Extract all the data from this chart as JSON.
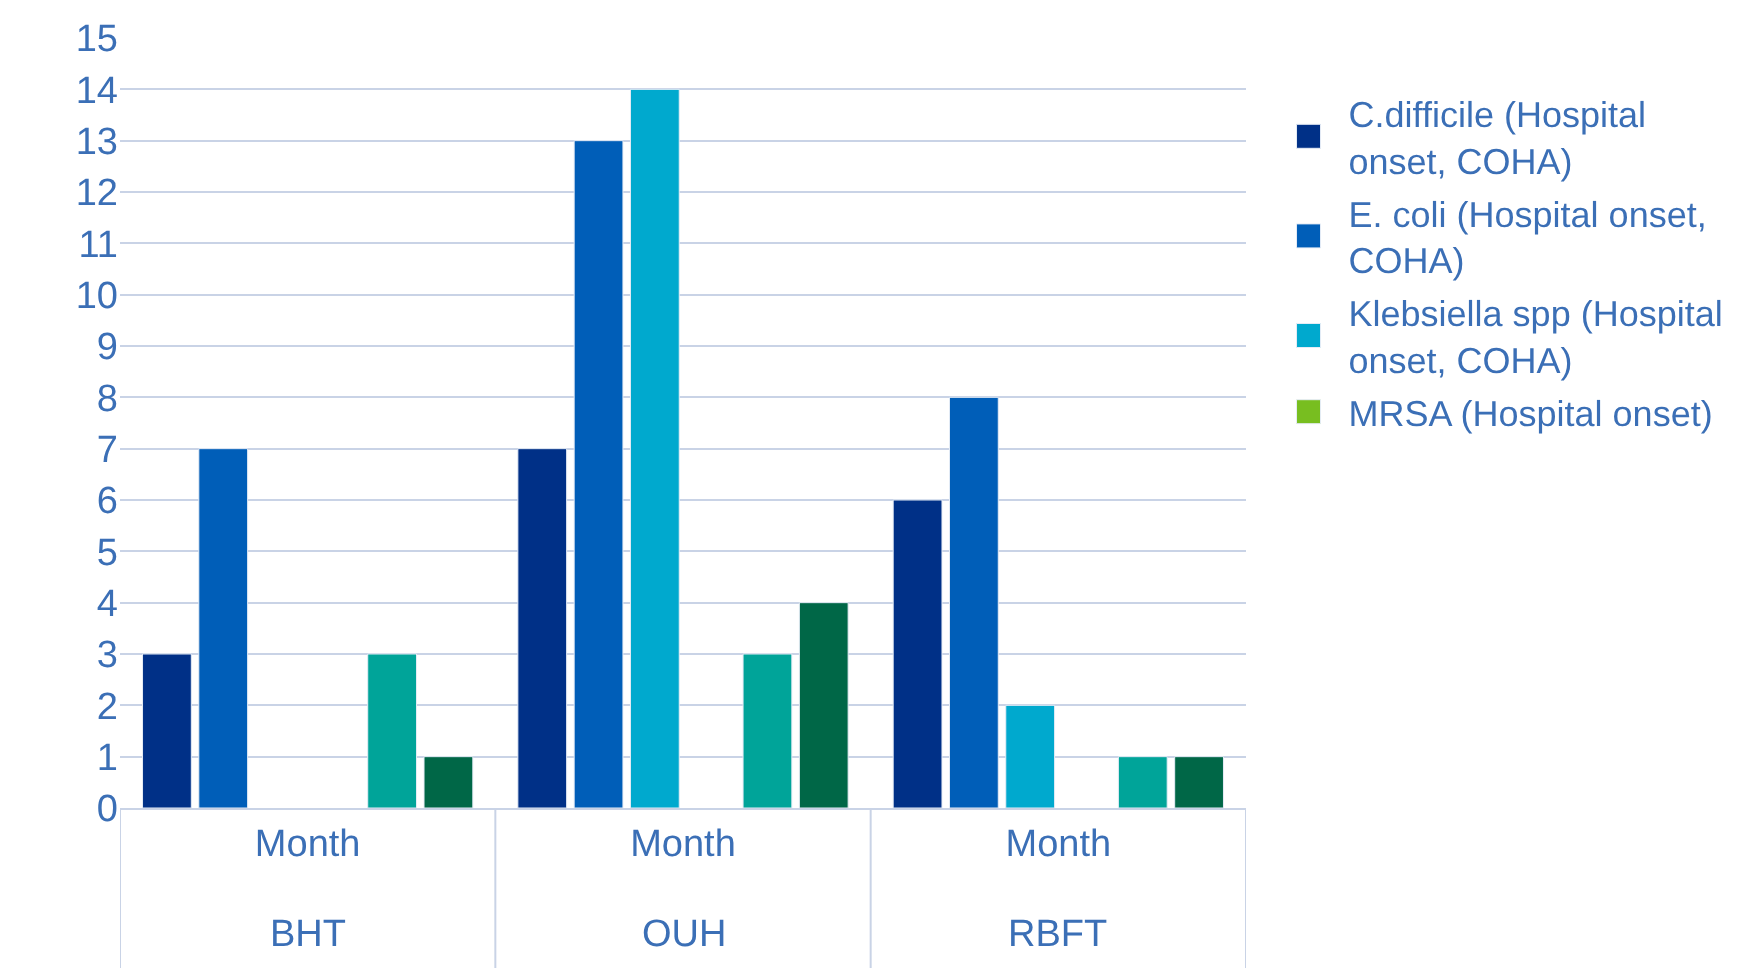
{
  "chart_data": {
    "type": "bar",
    "categories": [
      "Month",
      "Month",
      "Month"
    ],
    "annotations": [
      "BHT",
      "OUH",
      "RBFT"
    ],
    "series": [
      {
        "name": "C.difficile (Hospital onset, COHA)",
        "color": "#003087",
        "values": [
          3,
          7,
          6
        ]
      },
      {
        "name": "E. coli (Hospital onset, COHA)",
        "color": "#005eb8",
        "values": [
          7,
          13,
          8
        ]
      },
      {
        "name": "Klebsiella spp (Hospital onset, COHA)",
        "color": "#00a9ce",
        "values": [
          null,
          14,
          2
        ]
      },
      {
        "name": "MRSA (Hospital onset)",
        "color": "#78be20",
        "values": [
          null,
          null,
          null
        ]
      },
      {
        "color": "#00a499",
        "values": [
          3,
          3,
          1
        ]
      },
      {
        "color": "#006747",
        "values": [
          1,
          4,
          1
        ]
      }
    ],
    "ylim": [
      0,
      15
    ],
    "yticks": [
      0,
      1,
      2,
      3,
      4,
      5,
      6,
      7,
      8,
      9,
      10,
      11,
      12,
      13,
      14,
      15
    ],
    "grid": "y",
    "legend": "right"
  }
}
